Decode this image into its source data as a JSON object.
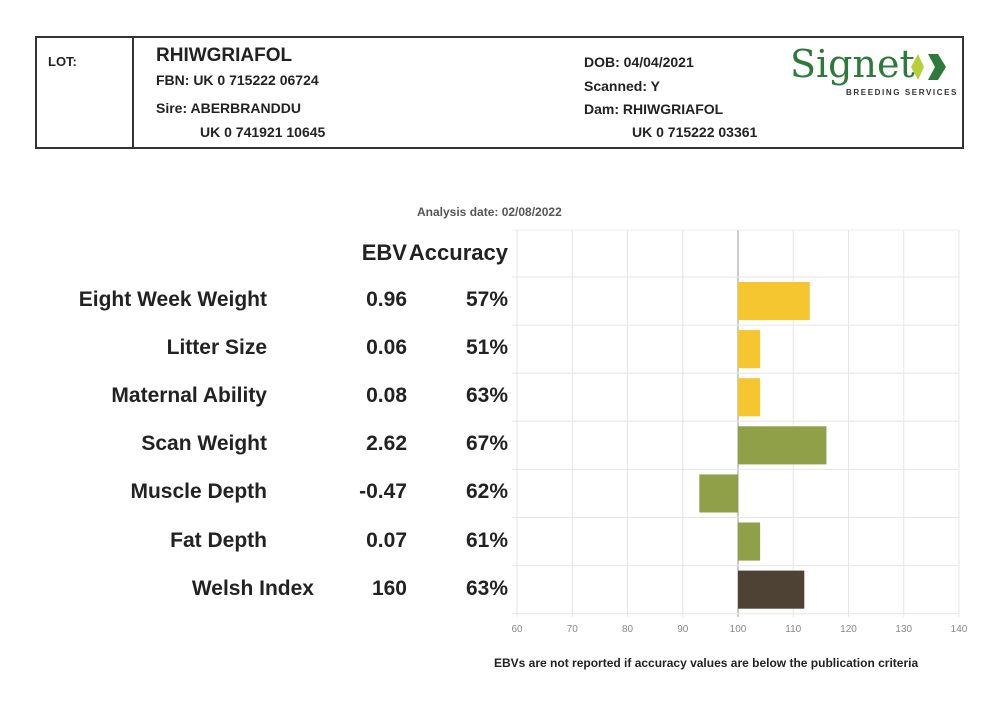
{
  "header": {
    "lot_label": "LOT:",
    "name": "RHIWGRIAFOL",
    "fbn": "FBN: UK 0 715222 06724",
    "sire": "Sire: ABERBRANDDU",
    "sire_id": "UK 0 741921 10645",
    "dob": "DOB: 04/04/2021",
    "scanned": "Scanned: Y",
    "dam": "Dam: RHIWGRIAFOL",
    "dam_id": "UK 0 715222 03361",
    "logo_text": "Signet",
    "logo_sub": "BREEDING SERVICES"
  },
  "analysis_date": "Analysis date: 02/08/2022",
  "columns": {
    "ebv": "EBV",
    "accuracy": "Accuracy"
  },
  "footnote": "EBVs are not reported if accuracy values are below the publication criteria",
  "chart_data": {
    "type": "bar",
    "orientation": "horizontal",
    "categories": [
      "Eight Week Weight",
      "Litter Size",
      "Maternal Ability",
      "Scan Weight",
      "Muscle Depth",
      "Fat Depth",
      "Welsh Index"
    ],
    "ebv": [
      "0.96",
      "0.06",
      "0.08",
      "2.62",
      "-0.47",
      "0.07",
      "160"
    ],
    "accuracy": [
      "57%",
      "51%",
      "63%",
      "67%",
      "62%",
      "61%",
      "63%"
    ],
    "values": [
      113,
      104,
      104,
      116,
      93,
      104,
      112
    ],
    "baseline": 100,
    "colors": [
      "#f5c630",
      "#f5c630",
      "#f5c630",
      "#8fa048",
      "#8fa048",
      "#8fa048",
      "#4e4235"
    ],
    "xlim": [
      60,
      140
    ],
    "xticks": [
      "60",
      "70",
      "80",
      "90",
      "100",
      "110",
      "120",
      "130",
      "140"
    ],
    "grid": true
  }
}
